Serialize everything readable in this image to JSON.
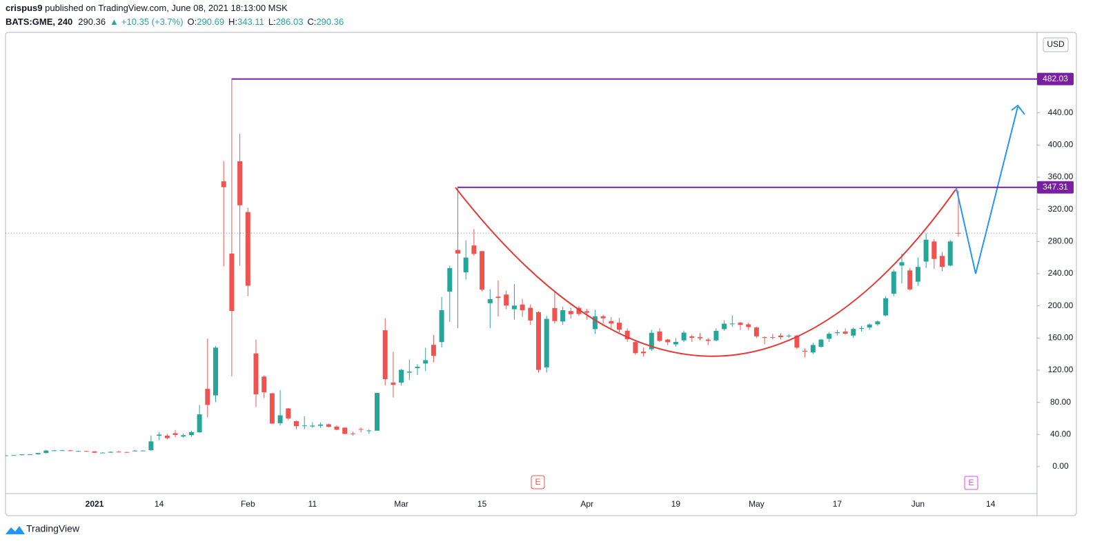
{
  "header": {
    "publisher": "crispus9",
    "published": "published on TradingView.com, June 08, 2021 18:13:00 MSK",
    "symbol": "BATS:GME, 240",
    "last": "290.36",
    "change": "+10.35 (+3.7%)",
    "legend_labels": [
      "O:",
      "H:",
      "L:",
      "C:"
    ],
    "legend_values": [
      "290.69",
      "343.11",
      "286.03",
      "290.36"
    ]
  },
  "logo": "TradingView",
  "chart_data": {
    "type": "candlestick",
    "currency": "USD",
    "up_color": "#26a69a",
    "down_color": "#ef5350",
    "categories": [
      null,
      null,
      null,
      null,
      null,
      null,
      null,
      null,
      null,
      null,
      null,
      "2021",
      null,
      null,
      null,
      null,
      null,
      null,
      null,
      "14",
      null,
      null,
      null,
      null,
      null,
      null,
      null,
      null,
      null,
      null,
      "Feb",
      null,
      null,
      null,
      null,
      null,
      null,
      null,
      "11",
      null,
      null,
      null,
      null,
      null,
      null,
      null,
      null,
      null,
      null,
      "Mar",
      null,
      null,
      null,
      null,
      null,
      null,
      null,
      null,
      null,
      "15",
      null,
      null,
      null,
      null,
      null,
      null,
      null,
      null,
      null,
      null,
      null,
      null,
      "Apr",
      null,
      null,
      null,
      null,
      null,
      null,
      null,
      null,
      null,
      null,
      "19",
      null,
      null,
      null,
      null,
      null,
      null,
      null,
      null,
      null,
      "May",
      null,
      null,
      null,
      null,
      null,
      null,
      null,
      null,
      null,
      "17",
      null,
      null,
      null,
      null,
      null,
      null,
      null,
      null,
      null,
      "Jun",
      null,
      null,
      null,
      null,
      null,
      null,
      null,
      null,
      "14",
      null,
      null,
      null,
      null,
      null
    ],
    "ohlc": [
      [
        14,
        14.5,
        13.5,
        14
      ],
      [
        14,
        14.5,
        13.8,
        14.3
      ],
      [
        14.3,
        15.5,
        14,
        15.3
      ],
      [
        15.3,
        15.7,
        14.8,
        15.3
      ],
      [
        15.3,
        17,
        15,
        16.9
      ],
      [
        16.9,
        20.8,
        16.5,
        20
      ],
      [
        20,
        20.5,
        19.5,
        20.2
      ],
      [
        20.2,
        21,
        19.5,
        20.3
      ],
      [
        20.3,
        21,
        19,
        19.4
      ],
      [
        19.4,
        19.8,
        19,
        19.4
      ],
      [
        19.4,
        19.6,
        18.5,
        18.8
      ],
      [
        19,
        19.1,
        17,
        17.3
      ],
      [
        17.3,
        18.1,
        17.2,
        17.4
      ],
      [
        17.4,
        18.9,
        17.3,
        18.4
      ],
      [
        18.5,
        19.5,
        18,
        18.1
      ],
      [
        18.2,
        18.3,
        17.1,
        17.7
      ],
      [
        19.4,
        20.6,
        19,
        19.9
      ],
      [
        19.9,
        20.4,
        19.3,
        20
      ],
      [
        20.4,
        38.7,
        20,
        31.4
      ],
      [
        38.5,
        43.1,
        33,
        39.9
      ],
      [
        38.5,
        40.8,
        34,
        35.5
      ],
      [
        41.6,
        45.5,
        36.6,
        39.4
      ],
      [
        37.4,
        41.2,
        36.1,
        39.1
      ],
      [
        39.2,
        44.8,
        37.2,
        43
      ],
      [
        42.6,
        76.8,
        42.3,
        65
      ],
      [
        96.7,
        159.2,
        61.1,
        76.8
      ],
      [
        88.6,
        150,
        80.2,
        148
      ],
      [
        354.8,
        380,
        249,
        347.5
      ],
      [
        265,
        483,
        112.3,
        193.6
      ],
      [
        379.7,
        413.98,
        250,
        325
      ],
      [
        316.6,
        322,
        212,
        225
      ],
      [
        140.8,
        158,
        74.2,
        90
      ],
      [
        112,
        113.4,
        85.3,
        92.4
      ],
      [
        91.2,
        91.5,
        53.3,
        53.5
      ],
      [
        54,
        95,
        51.1,
        63.8
      ],
      [
        72.4,
        72.7,
        58,
        60
      ],
      [
        56.6,
        57,
        46.5,
        50.3
      ],
      [
        50.8,
        62.8,
        46.5,
        51.2
      ],
      [
        50,
        55.3,
        48.2,
        51.1
      ],
      [
        50.8,
        55,
        48.2,
        52.4
      ],
      [
        52.7,
        53.5,
        49,
        49.5
      ],
      [
        49.8,
        51.2,
        45.1,
        45.9
      ],
      [
        48.5,
        48.9,
        40.3,
        40.7
      ],
      [
        41.3,
        43.7,
        38.5,
        40.6
      ],
      [
        46.7,
        48.5,
        42.5,
        46
      ],
      [
        44.4,
        46.2,
        40.7,
        45
      ],
      [
        44.7,
        91.7,
        44.7,
        91.7
      ],
      [
        169.6,
        184.7,
        101,
        108.7
      ],
      [
        104.5,
        142.9,
        86,
        101.7
      ],
      [
        104.5,
        121.3,
        100.7,
        120.4
      ],
      [
        116.9,
        133.2,
        107.6,
        118.2
      ],
      [
        122.5,
        127.3,
        113.9,
        124.2
      ],
      [
        128.2,
        147.9,
        118.7,
        132.4
      ],
      [
        151.5,
        163.7,
        129.7,
        137.7
      ],
      [
        154.9,
        210.9,
        148.3,
        194.5
      ],
      [
        217.7,
        249.9,
        180,
        246.9
      ],
      [
        269.4,
        348.5,
        172,
        265
      ],
      [
        241.6,
        281.5,
        232.6,
        260
      ],
      [
        275,
        295.5,
        262.3,
        264.5
      ],
      [
        268,
        268,
        218,
        220.1
      ],
      [
        203.2,
        220.7,
        172.4,
        208.2
      ],
      [
        211.4,
        231.5,
        186.6,
        209.8
      ],
      [
        214,
        218.9,
        195.7,
        200.3
      ],
      [
        195.7,
        227,
        182.7,
        200.3
      ],
      [
        201.6,
        208.5,
        186.3,
        194.5
      ],
      [
        197.5,
        201.8,
        176.3,
        181.75
      ],
      [
        192,
        193,
        117,
        120.34
      ],
      [
        123.5,
        187.5,
        116.9,
        183.75
      ],
      [
        197.2,
        218.9,
        178.1,
        181
      ],
      [
        180.5,
        199,
        176.3,
        194.5
      ],
      [
        193.5,
        197.7,
        184.1,
        189.6
      ],
      [
        197.5,
        200,
        187.5,
        189.8
      ],
      [
        193.3,
        196.4,
        182.6,
        191.45
      ],
      [
        171,
        195,
        165,
        186.95
      ],
      [
        187,
        189,
        178,
        184.5
      ],
      [
        181,
        186,
        172,
        178
      ],
      [
        179,
        185,
        167,
        170.3
      ],
      [
        169,
        172,
        155,
        158.4
      ],
      [
        155,
        157,
        139,
        141.1
      ],
      [
        143,
        148,
        137,
        141
      ],
      [
        146,
        170,
        144,
        166.5
      ],
      [
        168,
        172,
        155,
        156.4
      ],
      [
        158,
        159,
        151,
        154.7
      ],
      [
        152,
        160,
        149,
        155.1
      ],
      [
        157,
        169,
        155,
        166.7
      ],
      [
        162,
        164,
        155,
        160.2
      ],
      [
        161,
        166,
        157,
        159.6
      ],
      [
        158,
        160,
        151,
        156.4
      ],
      [
        157,
        172,
        156,
        168.8
      ],
      [
        171,
        182,
        169,
        177.8
      ],
      [
        177,
        188,
        174,
        177.9
      ],
      [
        179,
        180,
        170,
        176.2
      ],
      [
        177,
        179,
        170,
        173.6
      ],
      [
        173,
        174,
        160,
        162
      ],
      [
        161,
        162,
        152,
        160
      ],
      [
        161,
        165,
        158,
        160.9
      ],
      [
        163,
        166,
        158,
        161
      ],
      [
        162,
        165,
        160,
        162.8
      ],
      [
        163,
        164,
        146,
        148
      ],
      [
        144,
        147,
        136,
        143.4
      ],
      [
        142,
        154,
        140,
        151.3
      ],
      [
        149,
        159,
        148,
        158
      ],
      [
        159,
        167,
        155,
        165.2
      ],
      [
        166,
        170,
        163,
        167.1
      ],
      [
        168,
        172,
        164,
        165.3
      ],
      [
        163,
        173,
        160,
        171.3
      ],
      [
        172,
        175,
        168,
        172.2
      ],
      [
        173,
        178,
        170,
        176.8
      ],
      [
        177,
        182,
        175,
        180.6
      ],
      [
        188,
        212,
        187,
        209.4
      ],
      [
        215,
        245,
        212,
        242.6
      ],
      [
        250,
        265,
        228,
        254.2
      ],
      [
        244,
        247,
        219,
        220.4
      ],
      [
        230,
        260,
        225,
        248.4
      ],
      [
        255,
        290,
        247,
        282.2
      ],
      [
        280,
        283,
        246,
        258.2
      ],
      [
        262,
        267,
        243,
        248.4
      ],
      [
        250,
        282,
        249,
        280
      ],
      [
        290.69,
        343.11,
        286.03,
        290.36
      ],
      null,
      null,
      null,
      null,
      null,
      null,
      null,
      null,
      null
    ],
    "ylim": [
      -33.5,
      540
    ],
    "yticks": [
      {
        "value": 0,
        "label": "0.00"
      },
      {
        "value": 40,
        "label": "40.00"
      },
      {
        "value": 80,
        "label": "80.00"
      },
      {
        "value": 120,
        "label": "120.00"
      },
      {
        "value": 160,
        "label": "160.00"
      },
      {
        "value": 200,
        "label": "200.00"
      },
      {
        "value": 240,
        "label": "240.00"
      },
      {
        "value": 280,
        "label": "280.00"
      },
      {
        "value": 320,
        "label": "320.00"
      },
      {
        "value": 360,
        "label": "360.00"
      },
      {
        "value": 400,
        "label": "400.00"
      },
      {
        "value": 440,
        "label": "440.00"
      }
    ],
    "levels": [
      482.03,
      347.31
    ],
    "level_color": "#7b1fa2",
    "earnings_markers": [
      "E",
      "E"
    ]
  }
}
